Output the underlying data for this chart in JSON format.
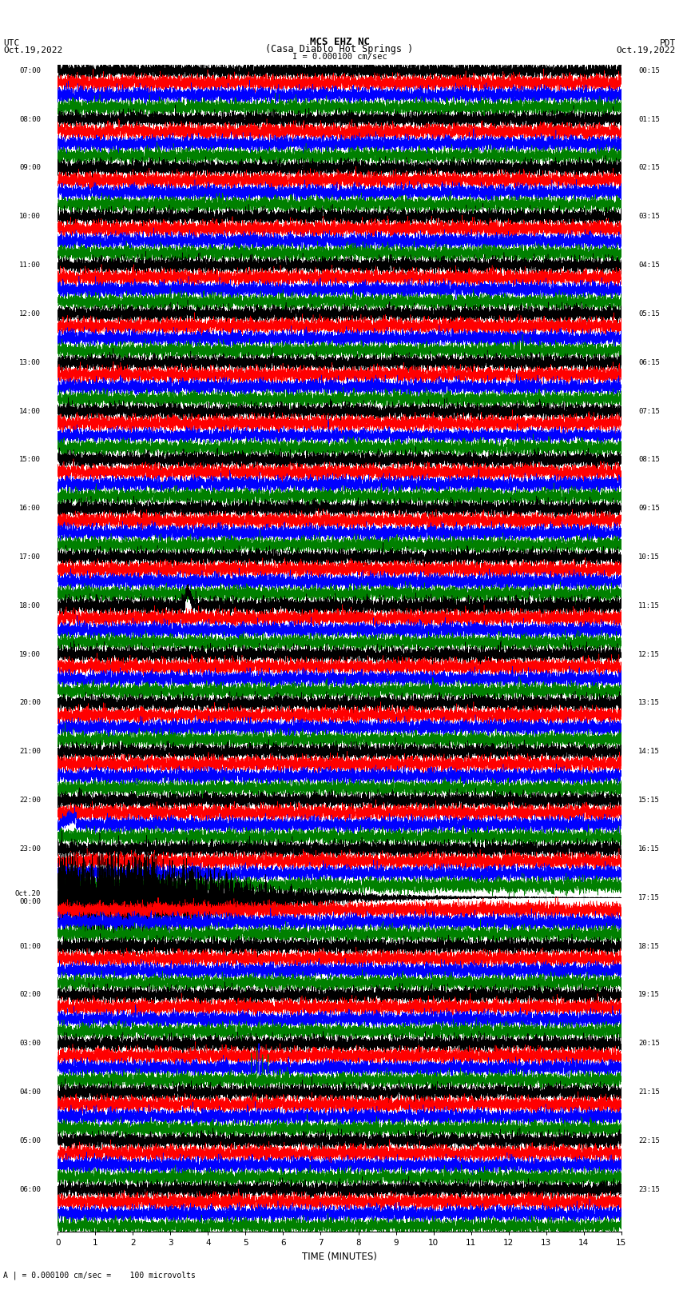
{
  "title_line1": "MCS EHZ NC",
  "title_line2": "(Casa Diablo Hot Springs )",
  "scale_label": "I = 0.000100 cm/sec",
  "bottom_label": "A | = 0.000100 cm/sec =    100 microvolts",
  "xlabel": "TIME (MINUTES)",
  "utc_label1": "UTC",
  "utc_label2": "Oct.19,2022",
  "pdt_label1": "PDT",
  "pdt_label2": "Oct.19,2022",
  "left_times": [
    "07:00",
    "08:00",
    "09:00",
    "10:00",
    "11:00",
    "12:00",
    "13:00",
    "14:00",
    "15:00",
    "16:00",
    "17:00",
    "18:00",
    "19:00",
    "20:00",
    "21:00",
    "22:00",
    "23:00",
    "Oct.20\n00:00",
    "01:00",
    "02:00",
    "03:00",
    "04:00",
    "05:00",
    "06:00"
  ],
  "right_times": [
    "00:15",
    "01:15",
    "02:15",
    "03:15",
    "04:15",
    "05:15",
    "06:15",
    "07:15",
    "08:15",
    "09:15",
    "10:15",
    "11:15",
    "12:15",
    "13:15",
    "14:15",
    "15:15",
    "16:15",
    "17:15",
    "18:15",
    "19:15",
    "20:15",
    "21:15",
    "22:15",
    "23:15"
  ],
  "colors": [
    "black",
    "red",
    "blue",
    "green"
  ],
  "n_rows": 24,
  "n_traces_per_row": 4,
  "x_min": 0,
  "x_max": 15,
  "xticks": [
    0,
    1,
    2,
    3,
    4,
    5,
    6,
    7,
    8,
    9,
    10,
    11,
    12,
    13,
    14,
    15
  ],
  "figsize": [
    8.5,
    16.13
  ],
  "dpi": 100,
  "bg_color": "white",
  "trace_amp": 0.38,
  "seed": 42
}
